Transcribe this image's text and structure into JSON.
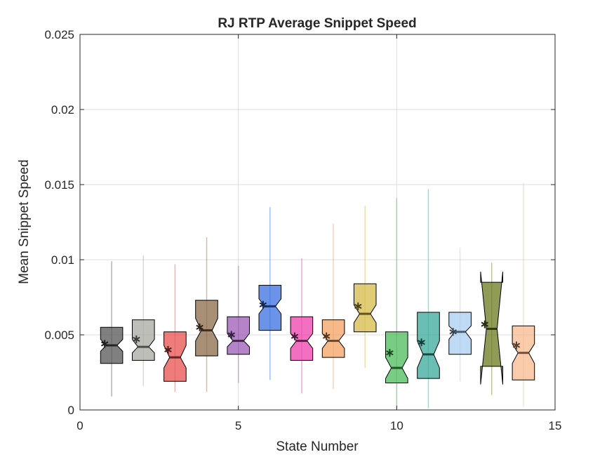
{
  "chart_data": {
    "type": "boxplot",
    "title": "RJ  RTP Average Snippet Speed",
    "xlabel": "State Number",
    "ylabel": "Mean Snippet Speed",
    "xlim": [
      0,
      15
    ],
    "ylim": [
      0,
      0.025
    ],
    "grid": true,
    "xticks": [
      0,
      5,
      10,
      15
    ],
    "xtick_labels": [
      "0",
      "5",
      "10",
      "15"
    ],
    "yticks": [
      0,
      0.005,
      0.01,
      0.015,
      0.02,
      0.025
    ],
    "ytick_labels": [
      "0",
      "0.005",
      "0.01",
      "0.015",
      "0.02",
      "0.025"
    ],
    "series": [
      {
        "x": 1,
        "color": "#555555",
        "min": 0.0009,
        "q1": 0.0031,
        "median": 0.0043,
        "q3": 0.0055,
        "max": 0.0099,
        "notch_lo": 0.0039,
        "notch_hi": 0.0047,
        "mean": 0.0044
      },
      {
        "x": 2,
        "color": "#a8a8a0",
        "min": 0.0016,
        "q1": 0.0033,
        "median": 0.0042,
        "q3": 0.006,
        "max": 0.0103,
        "notch_lo": 0.0038,
        "notch_hi": 0.0047,
        "mean": 0.0047
      },
      {
        "x": 3,
        "color": "#e8504f",
        "min": 0.0012,
        "q1": 0.0019,
        "median": 0.0035,
        "q3": 0.0052,
        "max": 0.0097,
        "notch_lo": 0.0028,
        "notch_hi": 0.0043,
        "mean": 0.004
      },
      {
        "x": 4,
        "color": "#8b6b4a",
        "min": 0.0012,
        "q1": 0.0036,
        "median": 0.0053,
        "q3": 0.0073,
        "max": 0.0115,
        "notch_lo": 0.0046,
        "notch_hi": 0.0061,
        "mean": 0.0055
      },
      {
        "x": 5,
        "color": "#9b59b6",
        "min": 0.0018,
        "q1": 0.0037,
        "median": 0.0046,
        "q3": 0.0062,
        "max": 0.0096,
        "notch_lo": 0.0042,
        "notch_hi": 0.0051,
        "mean": 0.005
      },
      {
        "x": 6,
        "color": "#3a6fe0",
        "min": 0.002,
        "q1": 0.0053,
        "median": 0.0069,
        "q3": 0.0083,
        "max": 0.0135,
        "notch_lo": 0.0064,
        "notch_hi": 0.0074,
        "mean": 0.007
      },
      {
        "x": 7,
        "color": "#ee3fae",
        "min": 0.0011,
        "q1": 0.0033,
        "median": 0.0046,
        "q3": 0.0062,
        "max": 0.0101,
        "notch_lo": 0.0041,
        "notch_hi": 0.0051,
        "mean": 0.0049
      },
      {
        "x": 8,
        "color": "#f4a261",
        "min": 0.0014,
        "q1": 0.0035,
        "median": 0.0046,
        "q3": 0.006,
        "max": 0.0124,
        "notch_lo": 0.0041,
        "notch_hi": 0.0051,
        "mean": 0.0049
      },
      {
        "x": 9,
        "color": "#d6b94a",
        "min": 0.0028,
        "q1": 0.0052,
        "median": 0.0064,
        "q3": 0.0084,
        "max": 0.0136,
        "notch_lo": 0.0058,
        "notch_hi": 0.007,
        "mean": 0.0069
      },
      {
        "x": 10,
        "color": "#4cbb5a",
        "min": 0.0001,
        "q1": 0.0018,
        "median": 0.0028,
        "q3": 0.0052,
        "max": 0.0141,
        "notch_lo": 0.0021,
        "notch_hi": 0.0035,
        "mean": 0.0038
      },
      {
        "x": 11,
        "color": "#3aa89a",
        "min": 0.0001,
        "q1": 0.0021,
        "median": 0.0037,
        "q3": 0.0065,
        "max": 0.0147,
        "notch_lo": 0.0028,
        "notch_hi": 0.0046,
        "mean": 0.0045
      },
      {
        "x": 12,
        "color": "#a9cdf2",
        "min": 0.0019,
        "q1": 0.0037,
        "median": 0.0052,
        "q3": 0.0065,
        "max": 0.0108,
        "notch_lo": 0.0047,
        "notch_hi": 0.0056,
        "mean": 0.0052
      },
      {
        "x": 13,
        "color": "#6b7a1f",
        "min": 0.001,
        "q1": 0.0029,
        "median": 0.0054,
        "q3": 0.0085,
        "max": 0.0098,
        "notch_lo": 0.0017,
        "notch_hi": 0.0092,
        "mean": 0.0057
      },
      {
        "x": 14,
        "color": "#f7b98e",
        "min": 0.0002,
        "q1": 0.002,
        "median": 0.0038,
        "q3": 0.0056,
        "max": 0.0151,
        "notch_lo": 0.0031,
        "notch_hi": 0.0044,
        "mean": 0.0043
      }
    ]
  }
}
